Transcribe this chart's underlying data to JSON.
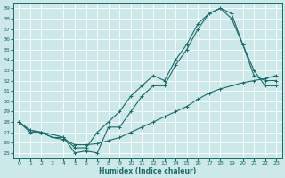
{
  "xlabel": "Humidex (Indice chaleur)",
  "bg_color": "#cce8e8",
  "line_color": "#1a6b6b",
  "grid_color": "#ffffff",
  "xlim": [
    -0.5,
    23.5
  ],
  "ylim": [
    24.5,
    39.5
  ],
  "yticks": [
    25,
    26,
    27,
    28,
    29,
    30,
    31,
    32,
    33,
    34,
    35,
    36,
    37,
    38,
    39
  ],
  "xticks": [
    0,
    1,
    2,
    3,
    4,
    5,
    6,
    7,
    8,
    9,
    10,
    11,
    12,
    13,
    14,
    15,
    16,
    17,
    18,
    19,
    20,
    21,
    22,
    23
  ],
  "series1_x": [
    0,
    1,
    2,
    3,
    4,
    5,
    6,
    7,
    8,
    9,
    10,
    11,
    12,
    13,
    14,
    15,
    16,
    17,
    18,
    19,
    20,
    21,
    22,
    23
  ],
  "series1_y": [
    28.0,
    27.2,
    27.0,
    26.5,
    26.3,
    25.8,
    25.8,
    25.9,
    26.2,
    26.5,
    27.0,
    27.5,
    28.0,
    28.5,
    29.0,
    29.5,
    30.2,
    30.8,
    31.2,
    31.5,
    31.8,
    32.0,
    32.2,
    32.5
  ],
  "series2_x": [
    0,
    1,
    2,
    3,
    4,
    5,
    6,
    7,
    8,
    9,
    10,
    11,
    12,
    13,
    14,
    15,
    16,
    17,
    18,
    19,
    20,
    21,
    22,
    23
  ],
  "series2_y": [
    28.0,
    27.0,
    27.0,
    26.5,
    26.5,
    25.0,
    25.2,
    25.0,
    27.5,
    27.5,
    29.0,
    30.5,
    31.5,
    31.5,
    33.5,
    35.0,
    37.0,
    38.5,
    39.0,
    38.0,
    35.5,
    32.5,
    32.0,
    32.0
  ],
  "series3_x": [
    0,
    1,
    2,
    3,
    4,
    5,
    6,
    7,
    8,
    9,
    10,
    11,
    12,
    13,
    14,
    15,
    16,
    17,
    18,
    19,
    20,
    21,
    22,
    23
  ],
  "series3_y": [
    28.0,
    27.2,
    27.0,
    26.8,
    26.5,
    25.5,
    25.5,
    27.0,
    28.0,
    29.0,
    30.5,
    31.5,
    32.5,
    32.0,
    34.0,
    35.5,
    37.5,
    38.5,
    39.0,
    38.5,
    35.5,
    33.0,
    31.5,
    31.5
  ]
}
